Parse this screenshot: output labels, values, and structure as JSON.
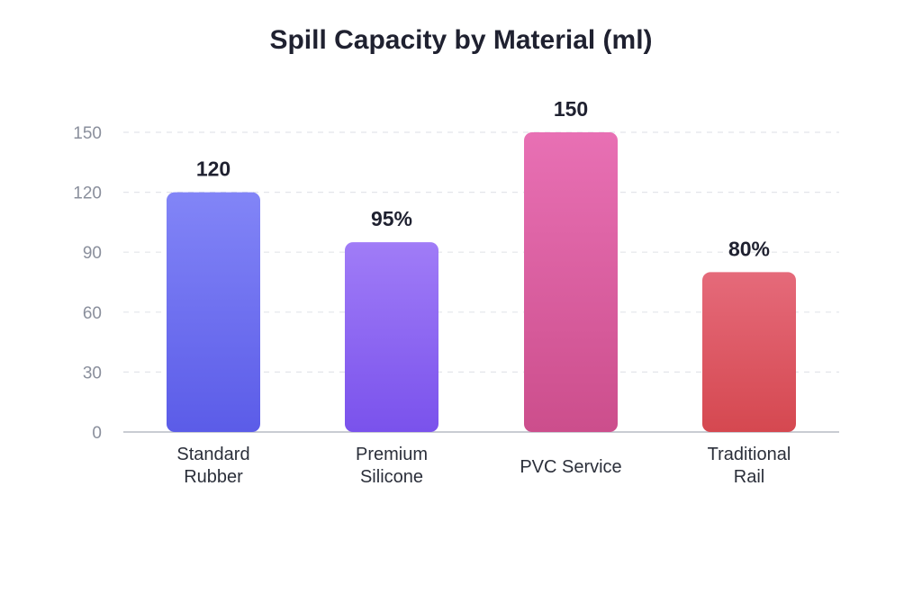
{
  "chart_data": {
    "type": "bar",
    "title": "Spill Capacity by Material (ml)",
    "xlabel": "",
    "ylabel": "",
    "ylim": [
      0,
      150
    ],
    "yticks": [
      "0",
      "30",
      "60",
      "90",
      "120",
      "150"
    ],
    "categories": [
      [
        "Standard",
        "Rubber"
      ],
      [
        "Premium",
        "Silicone"
      ],
      [
        "PVC Service"
      ],
      [
        "Traditional",
        "Rail"
      ]
    ],
    "values": [
      120,
      95,
      150,
      80
    ],
    "data_labels": [
      "120",
      "95%",
      "150",
      "80%"
    ],
    "grid": true,
    "legend": "none"
  },
  "colors": {
    "bars": [
      [
        "#8285f7",
        "#5b5ce8"
      ],
      [
        "#a07cf7",
        "#7a52ec"
      ],
      [
        "#e870b4",
        "#cc4e8c"
      ],
      [
        "#e56a7a",
        "#d54850"
      ]
    ]
  }
}
